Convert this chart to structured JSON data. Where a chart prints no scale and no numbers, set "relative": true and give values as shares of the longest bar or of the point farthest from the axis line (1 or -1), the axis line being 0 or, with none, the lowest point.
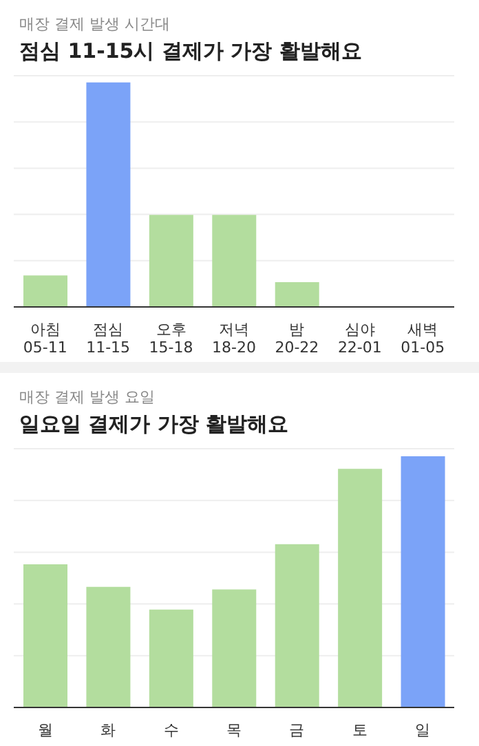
{
  "chart_data": [
    {
      "type": "bar",
      "subtitle": "매장 결제 발생 시간대",
      "title": "점심 11-15시 결제가 가장 활발해요",
      "categories": [
        "아침\n05-11",
        "점심\n11-15",
        "오후\n15-18",
        "저녁\n18-20",
        "밤\n20-22",
        "심야\n22-01",
        "새벽\n01-05"
      ],
      "values": [
        0.14,
        1,
        0.41,
        0.41,
        0.11,
        0,
        0
      ],
      "colors": [
        "#b3dd9e",
        "#7ba3f8",
        "#b3dd9e",
        "#b3dd9e",
        "#b3dd9e",
        "#b3dd9e",
        "#b3dd9e"
      ],
      "relative": true,
      "grid": "y"
    },
    {
      "type": "bar",
      "subtitle": "매장 결제 발생 요일",
      "title": "일요일 결제가 가장 활발해요",
      "categories": [
        "월",
        "화",
        "수",
        "목",
        "금",
        "토",
        "일"
      ],
      "values": [
        0.57,
        0.48,
        0.39,
        0.47,
        0.65,
        0.95,
        1
      ],
      "colors": [
        "#b3dd9e",
        "#b3dd9e",
        "#b3dd9e",
        "#b3dd9e",
        "#b3dd9e",
        "#b3dd9e",
        "#7ba3f8"
      ],
      "relative": true,
      "grid": "y"
    }
  ]
}
